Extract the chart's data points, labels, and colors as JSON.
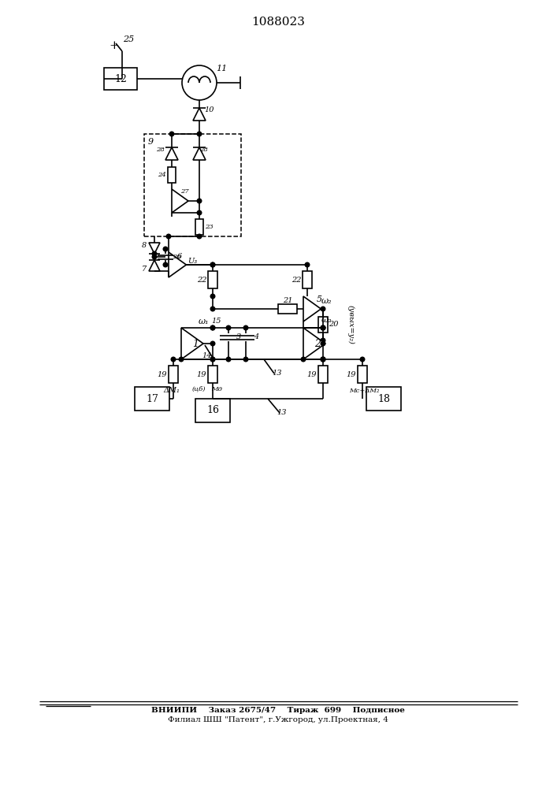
{
  "title": "1088023",
  "footer_line1": "ВНИИПИ    Заказ 2675/47    Тираж  699    Подписное",
  "footer_line2": "Филиал ШШ \"Патент\", г.Ужгород, ул.Проектная, 4",
  "bg_color": "white"
}
